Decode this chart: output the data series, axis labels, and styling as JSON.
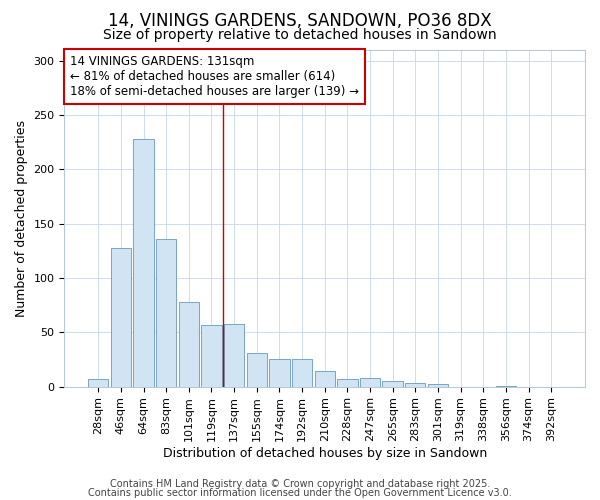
{
  "title": "14, VININGS GARDENS, SANDOWN, PO36 8DX",
  "subtitle": "Size of property relative to detached houses in Sandown",
  "xlabel": "Distribution of detached houses by size in Sandown",
  "ylabel": "Number of detached properties",
  "categories": [
    "28sqm",
    "46sqm",
    "64sqm",
    "83sqm",
    "101sqm",
    "119sqm",
    "137sqm",
    "155sqm",
    "174sqm",
    "192sqm",
    "210sqm",
    "228sqm",
    "247sqm",
    "265sqm",
    "283sqm",
    "301sqm",
    "319sqm",
    "338sqm",
    "356sqm",
    "374sqm",
    "392sqm"
  ],
  "values": [
    7,
    128,
    228,
    136,
    78,
    57,
    58,
    31,
    25,
    25,
    14,
    7,
    8,
    5,
    3,
    2,
    0,
    0,
    1,
    0,
    0
  ],
  "bar_color": "#d0e4f4",
  "bar_edge_color": "#6699bb",
  "vline_x": 5.5,
  "vline_color": "#cc0000",
  "annotation_text": "14 VININGS GARDENS: 131sqm\n← 81% of detached houses are smaller (614)\n18% of semi-detached houses are larger (139) →",
  "annotation_box_color": "#ffffff",
  "annotation_box_edge": "#cc0000",
  "ylim": [
    0,
    310
  ],
  "yticks": [
    0,
    50,
    100,
    150,
    200,
    250,
    300
  ],
  "bg_color": "#ffffff",
  "plot_bg_color": "#ffffff",
  "footer_line1": "Contains HM Land Registry data © Crown copyright and database right 2025.",
  "footer_line2": "Contains public sector information licensed under the Open Government Licence v3.0.",
  "title_fontsize": 12,
  "subtitle_fontsize": 10,
  "label_fontsize": 9,
  "tick_fontsize": 8,
  "annotation_fontsize": 8.5,
  "footer_fontsize": 7
}
